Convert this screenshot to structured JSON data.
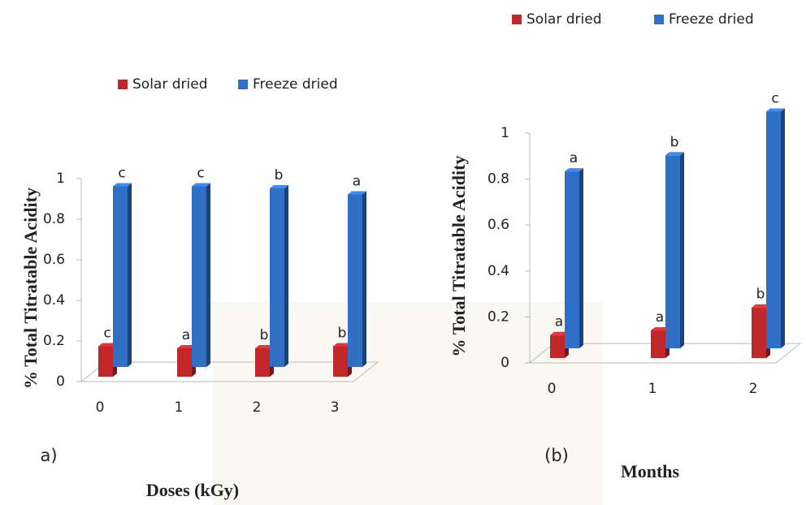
{
  "chart_data": [
    {
      "type": "bar3d",
      "panel_label": "a)",
      "x_label": "Doses (kGy)",
      "y_label": "% Total Titratable Acidity",
      "categories": [
        "0",
        "1",
        "2",
        "3"
      ],
      "ylim": [
        0,
        1
      ],
      "yticks": [
        0,
        0.2,
        0.4,
        0.6,
        0.8,
        1
      ],
      "series": [
        {
          "name": "Solar dried",
          "color": "#c0282a",
          "values": [
            0.15,
            0.14,
            0.14,
            0.15
          ],
          "letters": [
            "c",
            "a",
            "b",
            "b"
          ]
        },
        {
          "name": "Freeze dried",
          "color": "#2f6fc6",
          "values": [
            0.89,
            0.89,
            0.88,
            0.85
          ],
          "letters": [
            "c",
            "c",
            "b",
            "a"
          ]
        }
      ]
    },
    {
      "type": "bar3d",
      "panel_label": "(b)",
      "x_label": "Months",
      "y_label": "% Total Titratable Acidity",
      "categories": [
        "0",
        "1",
        "2"
      ],
      "ylim": [
        0,
        1
      ],
      "yticks": [
        0,
        0.2,
        0.4,
        0.6,
        0.8,
        1
      ],
      "series": [
        {
          "name": "Solar dried",
          "color": "#c0282a",
          "values": [
            0.1,
            0.12,
            0.22
          ],
          "letters": [
            "a",
            "a",
            "b"
          ]
        },
        {
          "name": "Freeze dried",
          "color": "#2f6fc6",
          "values": [
            0.77,
            0.84,
            1.03
          ],
          "letters": [
            "a",
            "b",
            "c"
          ]
        }
      ]
    }
  ]
}
